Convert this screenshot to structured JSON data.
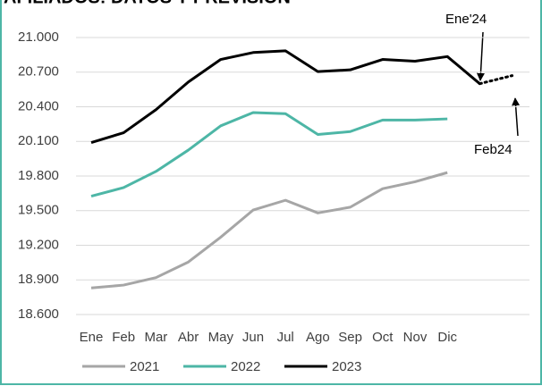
{
  "chart_data": {
    "type": "line",
    "title": "AFILIADOS: DATOS Y PREVISIÓN",
    "categories": [
      "Ene",
      "Feb",
      "Mar",
      "Abr",
      "May",
      "Jun",
      "Jul",
      "Ago",
      "Sep",
      "Oct",
      "Nov",
      "Dic",
      null,
      null
    ],
    "series": [
      {
        "name": "2021",
        "color": "#a6a6a6",
        "values": [
          18830,
          18855,
          18920,
          19055,
          19270,
          19505,
          19590,
          19480,
          19530,
          19690,
          19750,
          19830,
          null,
          null
        ]
      },
      {
        "name": "2022",
        "color": "#4db6a6",
        "values": [
          19625,
          19700,
          19840,
          20025,
          20235,
          20350,
          20340,
          20160,
          20185,
          20285,
          20285,
          20295,
          null,
          null
        ]
      },
      {
        "name": "2023",
        "color": "#000000",
        "dotted_from": 12,
        "values": [
          20090,
          20175,
          20375,
          20615,
          20810,
          20870,
          20885,
          20705,
          20720,
          20810,
          20795,
          20835,
          20600,
          20670
        ]
      }
    ],
    "ylim": [
      18600,
      21000
    ],
    "yticks": [
      {
        "value": 18600,
        "label": "18.600"
      },
      {
        "value": 18900,
        "label": "18.900"
      },
      {
        "value": 19200,
        "label": "19.200"
      },
      {
        "value": 19500,
        "label": "19.500"
      },
      {
        "value": 19800,
        "label": "19.800"
      },
      {
        "value": 20100,
        "label": "20.100"
      },
      {
        "value": 20400,
        "label": "20.400"
      },
      {
        "value": 20700,
        "label": "20.700"
      },
      {
        "value": 21000,
        "label": "21.000"
      }
    ],
    "grid": true,
    "legend": "bottom",
    "annotations": [
      {
        "text": "Ene'24"
      },
      {
        "text": "Feb24"
      }
    ]
  }
}
